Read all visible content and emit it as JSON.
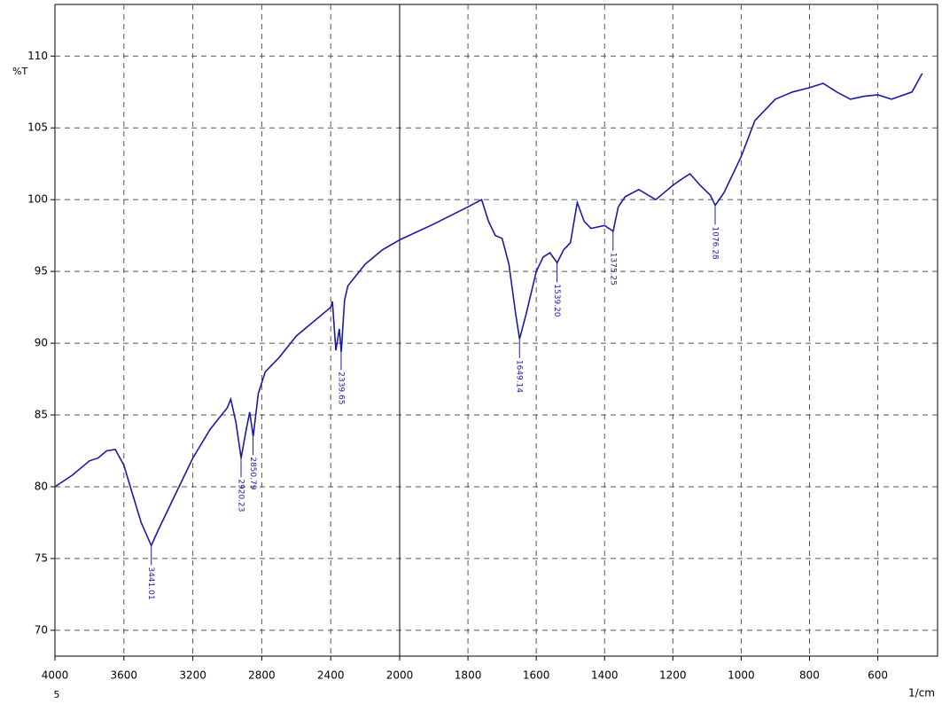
{
  "chart_data": {
    "type": "line",
    "y_label": "%T",
    "x_label": "1/cm",
    "footnote": "5",
    "xlim": [
      4000,
      425
    ],
    "x_scale_break": 2000,
    "ylim": [
      68.2,
      113.6
    ],
    "xticks": [
      4000,
      3600,
      3200,
      2800,
      2400,
      2000,
      1800,
      1600,
      1400,
      1200,
      1000,
      800,
      600
    ],
    "yticks": [
      70,
      75,
      80,
      85,
      90,
      95,
      100,
      105,
      110
    ],
    "grid": true,
    "series": [
      {
        "color": "#1a1aa8",
        "x": [
          4000,
          3900,
          3800,
          3750,
          3700,
          3650,
          3600,
          3550,
          3500,
          3441,
          3400,
          3300,
          3200,
          3100,
          3000,
          2980,
          2950,
          2920,
          2890,
          2870,
          2850,
          2820,
          2780,
          2700,
          2600,
          2500,
          2400,
          2390,
          2370,
          2350,
          2339,
          2320,
          2300,
          2200,
          2100,
          2000,
          1900,
          1800,
          1760,
          1740,
          1720,
          1700,
          1680,
          1660,
          1649,
          1630,
          1600,
          1580,
          1560,
          1539,
          1520,
          1500,
          1480,
          1460,
          1440,
          1400,
          1375,
          1360,
          1340,
          1300,
          1250,
          1200,
          1170,
          1150,
          1120,
          1090,
          1076,
          1050,
          1000,
          960,
          900,
          850,
          800,
          760,
          720,
          680,
          640,
          600,
          560,
          500,
          470
        ],
        "values": [
          80.0,
          80.8,
          81.8,
          82.0,
          82.5,
          82.6,
          81.5,
          79.5,
          77.5,
          75.9,
          77.0,
          79.5,
          82.0,
          84.0,
          85.5,
          86.1,
          84.5,
          82.0,
          84.0,
          85.2,
          83.5,
          86.5,
          88.0,
          89.0,
          90.5,
          91.5,
          92.5,
          92.9,
          89.5,
          91.0,
          89.4,
          93.0,
          94.0,
          95.5,
          96.5,
          97.2,
          98.3,
          99.5,
          100.0,
          98.5,
          97.5,
          97.3,
          95.5,
          92.0,
          90.3,
          92.0,
          95.0,
          96.0,
          96.3,
          95.6,
          96.5,
          97.0,
          99.8,
          98.5,
          98.0,
          98.2,
          97.8,
          99.5,
          100.2,
          100.7,
          100.0,
          101.0,
          101.5,
          101.8,
          101.0,
          100.3,
          99.6,
          100.5,
          103.0,
          105.5,
          107.0,
          107.5,
          107.8,
          108.1,
          107.5,
          107.0,
          107.2,
          107.3,
          107.0,
          107.5,
          108.8
        ]
      }
    ],
    "annotations": [
      {
        "x": 3441.01,
        "label": "3441.01"
      },
      {
        "x": 2920.23,
        "label": "2920.23"
      },
      {
        "x": 2850.79,
        "label": "2850.79"
      },
      {
        "x": 2339.65,
        "label": "2339.65"
      },
      {
        "x": 1649.14,
        "label": "1649.14"
      },
      {
        "x": 1539.2,
        "label": "1539.20"
      },
      {
        "x": 1375.25,
        "label": "1375.25"
      },
      {
        "x": 1076.28,
        "label": "1076.28"
      }
    ]
  }
}
